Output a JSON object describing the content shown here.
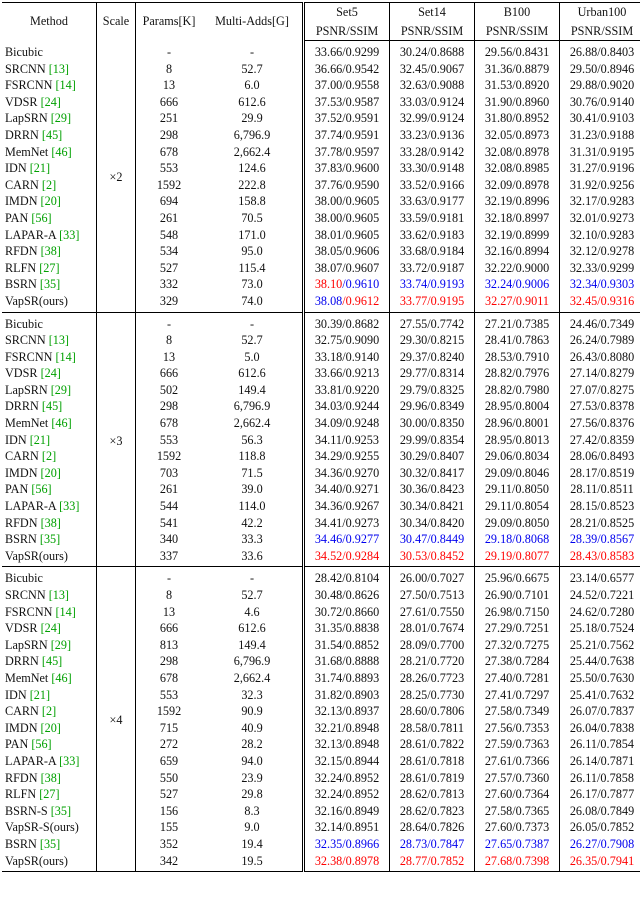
{
  "headers": {
    "method": "Method",
    "scale": "Scale",
    "params": "Params[K]",
    "madds": "Multi-Adds[G]",
    "datasets": [
      "Set5",
      "Set14",
      "B100",
      "Urban100"
    ],
    "metric": "PSNR/SSIM"
  },
  "groups": [
    {
      "scale": "×2",
      "rows": [
        {
          "name": "Bicubic",
          "ref": "",
          "params": "-",
          "madds": "-",
          "vals": [
            "33.66/0.9299",
            "30.24/0.8688",
            "29.56/0.8431",
            "26.88/0.8403"
          ],
          "hl": ""
        },
        {
          "name": "SRCNN",
          "ref": "[13]",
          "params": "8",
          "madds": "52.7",
          "vals": [
            "36.66/0.9542",
            "32.45/0.9067",
            "31.36/0.8879",
            "29.50/0.8946"
          ],
          "hl": ""
        },
        {
          "name": "FSRCNN",
          "ref": "[14]",
          "params": "13",
          "madds": "6.0",
          "vals": [
            "37.00/0.9558",
            "32.63/0.9088",
            "31.53/0.8920",
            "29.88/0.9020"
          ],
          "hl": ""
        },
        {
          "name": "VDSR",
          "ref": "[24]",
          "params": "666",
          "madds": "612.6",
          "vals": [
            "37.53/0.9587",
            "33.03/0.9124",
            "31.90/0.8960",
            "30.76/0.9140"
          ],
          "hl": ""
        },
        {
          "name": "LapSRN",
          "ref": "[29]",
          "params": "251",
          "madds": "29.9",
          "vals": [
            "37.52/0.9591",
            "32.99/0.9124",
            "31.80/0.8952",
            "30.41/0.9103"
          ],
          "hl": ""
        },
        {
          "name": "DRRN",
          "ref": "[45]",
          "params": "298",
          "madds": "6,796.9",
          "vals": [
            "37.74/0.9591",
            "33.23/0.9136",
            "32.05/0.8973",
            "31.23/0.9188"
          ],
          "hl": ""
        },
        {
          "name": "MemNet",
          "ref": "[46]",
          "params": "678",
          "madds": "2,662.4",
          "vals": [
            "37.78/0.9597",
            "33.28/0.9142",
            "32.08/0.8978",
            "31.31/0.9195"
          ],
          "hl": ""
        },
        {
          "name": "IDN",
          "ref": "[21]",
          "params": "553",
          "madds": "124.6",
          "vals": [
            "37.83/0.9600",
            "33.30/0.9148",
            "32.08/0.8985",
            "31.27/0.9196"
          ],
          "hl": ""
        },
        {
          "name": "CARN",
          "ref": "[2]",
          "params": "1592",
          "madds": "222.8",
          "vals": [
            "37.76/0.9590",
            "33.52/0.9166",
            "32.09/0.8978",
            "31.92/0.9256"
          ],
          "hl": ""
        },
        {
          "name": "IMDN",
          "ref": "[20]",
          "params": "694",
          "madds": "158.8",
          "vals": [
            "38.00/0.9605",
            "33.63/0.9177",
            "32.19/0.8996",
            "32.17/0.9283"
          ],
          "hl": ""
        },
        {
          "name": "PAN",
          "ref": "[56]",
          "params": "261",
          "madds": "70.5",
          "vals": [
            "38.00/0.9605",
            "33.59/0.9181",
            "32.18/0.8997",
            "32.01/0.9273"
          ],
          "hl": ""
        },
        {
          "name": "LAPAR-A",
          "ref": "[33]",
          "params": "548",
          "madds": "171.0",
          "vals": [
            "38.01/0.9605",
            "33.62/0.9183",
            "32.19/0.8999",
            "32.10/0.9283"
          ],
          "hl": ""
        },
        {
          "name": "RFDN",
          "ref": "[38]",
          "params": "534",
          "madds": "95.0",
          "vals": [
            "38.05/0.9606",
            "33.68/0.9184",
            "32.16/0.8994",
            "32.12/0.9278"
          ],
          "hl": ""
        },
        {
          "name": "RLFN",
          "ref": "[27]",
          "params": "527",
          "madds": "115.4",
          "vals": [
            "38.07/0.9607",
            "33.72/0.9187",
            "32.22/0.9000",
            "32.33/0.9299"
          ],
          "hl": ""
        },
        {
          "name": "BSRN",
          "ref": "[35]",
          "params": "332",
          "madds": "73.0",
          "vals": [
            "38.10/0.9610",
            "33.74/0.9193",
            "32.24/0.9006",
            "32.34/0.9303"
          ],
          "hl": "bsrn2"
        },
        {
          "name": "VapSR(ours)",
          "ref": "",
          "params": "329",
          "madds": "74.0",
          "vals": [
            "38.08/0.9612",
            "33.77/0.9195",
            "32.27/0.9011",
            "32.45/0.9316"
          ],
          "hl": "vap2"
        }
      ]
    },
    {
      "scale": "×3",
      "rows": [
        {
          "name": "Bicubic",
          "ref": "",
          "params": "-",
          "madds": "-",
          "vals": [
            "30.39/0.8682",
            "27.55/0.7742",
            "27.21/0.7385",
            "24.46/0.7349"
          ],
          "hl": ""
        },
        {
          "name": "SRCNN",
          "ref": "[13]",
          "params": "8",
          "madds": "52.7",
          "vals": [
            "32.75/0.9090",
            "29.30/0.8215",
            "28.41/0.7863",
            "26.24/0.7989"
          ],
          "hl": ""
        },
        {
          "name": "FSRCNN",
          "ref": "[14]",
          "params": "13",
          "madds": "5.0",
          "vals": [
            "33.18/0.9140",
            "29.37/0.8240",
            "28.53/0.7910",
            "26.43/0.8080"
          ],
          "hl": ""
        },
        {
          "name": "VDSR",
          "ref": "[24]",
          "params": "666",
          "madds": "612.6",
          "vals": [
            "33.66/0.9213",
            "29.77/0.8314",
            "28.82/0.7976",
            "27.14/0.8279"
          ],
          "hl": ""
        },
        {
          "name": "LapSRN",
          "ref": "[29]",
          "params": "502",
          "madds": "149.4",
          "vals": [
            "33.81/0.9220",
            "29.79/0.8325",
            "28.82/0.7980",
            "27.07/0.8275"
          ],
          "hl": ""
        },
        {
          "name": "DRRN",
          "ref": "[45]",
          "params": "298",
          "madds": "6,796.9",
          "vals": [
            "34.03/0.9244",
            "29.96/0.8349",
            "28.95/0.8004",
            "27.53/0.8378"
          ],
          "hl": ""
        },
        {
          "name": "MemNet",
          "ref": "[46]",
          "params": "678",
          "madds": "2,662.4",
          "vals": [
            "34.09/0.9248",
            "30.00/0.8350",
            "28.96/0.8001",
            "27.56/0.8376"
          ],
          "hl": ""
        },
        {
          "name": "IDN",
          "ref": "[21]",
          "params": "553",
          "madds": "56.3",
          "vals": [
            "34.11/0.9253",
            "29.99/0.8354",
            "28.95/0.8013",
            "27.42/0.8359"
          ],
          "hl": ""
        },
        {
          "name": "CARN",
          "ref": "[2]",
          "params": "1592",
          "madds": "118.8",
          "vals": [
            "34.29/0.9255",
            "30.29/0.8407",
            "29.06/0.8034",
            "28.06/0.8493"
          ],
          "hl": ""
        },
        {
          "name": "IMDN",
          "ref": "[20]",
          "params": "703",
          "madds": "71.5",
          "vals": [
            "34.36/0.9270",
            "30.32/0.8417",
            "29.09/0.8046",
            "28.17/0.8519"
          ],
          "hl": ""
        },
        {
          "name": "PAN",
          "ref": "[56]",
          "params": "261",
          "madds": "39.0",
          "vals": [
            "34.40/0.9271",
            "30.36/0.8423",
            "29.11/0.8050",
            "28.11/0.8511"
          ],
          "hl": ""
        },
        {
          "name": "LAPAR-A",
          "ref": "[33]",
          "params": "544",
          "madds": "114.0",
          "vals": [
            "34.36/0.9267",
            "30.34/0.8421",
            "29.11/0.8054",
            "28.15/0.8523"
          ],
          "hl": ""
        },
        {
          "name": "RFDN",
          "ref": "[38]",
          "params": "541",
          "madds": "42.2",
          "vals": [
            "34.41/0.9273",
            "30.34/0.8420",
            "29.09/0.8050",
            "28.21/0.8525"
          ],
          "hl": ""
        },
        {
          "name": "BSRN",
          "ref": "[35]",
          "params": "340",
          "madds": "33.3",
          "vals": [
            "34.46/0.9277",
            "30.47/0.8449",
            "29.18/0.8068",
            "28.39/0.8567"
          ],
          "hl": "blue"
        },
        {
          "name": "VapSR(ours)",
          "ref": "",
          "params": "337",
          "madds": "33.6",
          "vals": [
            "34.52/0.9284",
            "30.53/0.8452",
            "29.19/0.8077",
            "28.43/0.8583"
          ],
          "hl": "red"
        }
      ]
    },
    {
      "scale": "×4",
      "rows": [
        {
          "name": "Bicubic",
          "ref": "",
          "params": "-",
          "madds": "-",
          "vals": [
            "28.42/0.8104",
            "26.00/0.7027",
            "25.96/0.6675",
            "23.14/0.6577"
          ],
          "hl": ""
        },
        {
          "name": "SRCNN",
          "ref": "[13]",
          "params": "8",
          "madds": "52.7",
          "vals": [
            "30.48/0.8626",
            "27.50/0.7513",
            "26.90/0.7101",
            "24.52/0.7221"
          ],
          "hl": ""
        },
        {
          "name": "FSRCNN",
          "ref": "[14]",
          "params": "13",
          "madds": "4.6",
          "vals": [
            "30.72/0.8660",
            "27.61/0.7550",
            "26.98/0.7150",
            "24.62/0.7280"
          ],
          "hl": ""
        },
        {
          "name": "VDSR",
          "ref": "[24]",
          "params": "666",
          "madds": "612.6",
          "vals": [
            "31.35/0.8838",
            "28.01/0.7674",
            "27.29/0.7251",
            "25.18/0.7524"
          ],
          "hl": ""
        },
        {
          "name": "LapSRN",
          "ref": "[29]",
          "params": "813",
          "madds": "149.4",
          "vals": [
            "31.54/0.8852",
            "28.09/0.7700",
            "27.32/0.7275",
            "25.21/0.7562"
          ],
          "hl": ""
        },
        {
          "name": "DRRN",
          "ref": "[45]",
          "params": "298",
          "madds": "6,796.9",
          "vals": [
            "31.68/0.8888",
            "28.21/0.7720",
            "27.38/0.7284",
            "25.44/0.7638"
          ],
          "hl": ""
        },
        {
          "name": "MemNet",
          "ref": "[46]",
          "params": "678",
          "madds": "2,662.4",
          "vals": [
            "31.74/0.8893",
            "28.26/0.7723",
            "27.40/0.7281",
            "25.50/0.7630"
          ],
          "hl": ""
        },
        {
          "name": "IDN",
          "ref": "[21]",
          "params": "553",
          "madds": "32.3",
          "vals": [
            "31.82/0.8903",
            "28.25/0.7730",
            "27.41/0.7297",
            "25.41/0.7632"
          ],
          "hl": ""
        },
        {
          "name": "CARN",
          "ref": "[2]",
          "params": "1592",
          "madds": "90.9",
          "vals": [
            "32.13/0.8937",
            "28.60/0.7806",
            "27.58/0.7349",
            "26.07/0.7837"
          ],
          "hl": ""
        },
        {
          "name": "IMDN",
          "ref": "[20]",
          "params": "715",
          "madds": "40.9",
          "vals": [
            "32.21/0.8948",
            "28.58/0.7811",
            "27.56/0.7353",
            "26.04/0.7838"
          ],
          "hl": ""
        },
        {
          "name": "PAN",
          "ref": "[56]",
          "params": "272",
          "madds": "28.2",
          "vals": [
            "32.13/0.8948",
            "28.61/0.7822",
            "27.59/0.7363",
            "26.11/0.7854"
          ],
          "hl": ""
        },
        {
          "name": "LAPAR-A",
          "ref": "[33]",
          "params": "659",
          "madds": "94.0",
          "vals": [
            "32.15/0.8944",
            "28.61/0.7818",
            "27.61/0.7366",
            "26.14/0.7871"
          ],
          "hl": ""
        },
        {
          "name": "RFDN",
          "ref": "[38]",
          "params": "550",
          "madds": "23.9",
          "vals": [
            "32.24/0.8952",
            "28.61/0.7819",
            "27.57/0.7360",
            "26.11/0.7858"
          ],
          "hl": ""
        },
        {
          "name": "RLFN",
          "ref": "[27]",
          "params": "527",
          "madds": "29.8",
          "vals": [
            "32.24/0.8952",
            "28.62/0.7813",
            "27.60/0.7364",
            "26.17/0.7877"
          ],
          "hl": ""
        },
        {
          "name": "BSRN-S",
          "ref": "[35]",
          "params": "156",
          "madds": "8.3",
          "vals": [
            "32.16/0.8949",
            "28.62/0.7823",
            "27.58/0.7365",
            "26.08/0.7849"
          ],
          "hl": ""
        },
        {
          "name": "VapSR-S(ours)",
          "ref": "",
          "params": "155",
          "madds": "9.0",
          "vals": [
            "32.14/0.8951",
            "28.64/0.7826",
            "27.60/0.7373",
            "26.05/0.7852"
          ],
          "hl": ""
        },
        {
          "name": "BSRN",
          "ref": "[35]",
          "params": "352",
          "madds": "19.4",
          "vals": [
            "32.35/0.8966",
            "28.73/0.7847",
            "27.65/0.7387",
            "26.27/0.7908"
          ],
          "hl": "blue"
        },
        {
          "name": "VapSR(ours)",
          "ref": "",
          "params": "342",
          "madds": "19.5",
          "vals": [
            "32.38/0.8978",
            "28.77/0.7852",
            "27.68/0.7398",
            "26.35/0.7941"
          ],
          "hl": "red"
        }
      ]
    }
  ],
  "colors": {
    "highlight_best": "#ff0000",
    "highlight_second": "#0000ee",
    "reference_link": "#00a000"
  }
}
